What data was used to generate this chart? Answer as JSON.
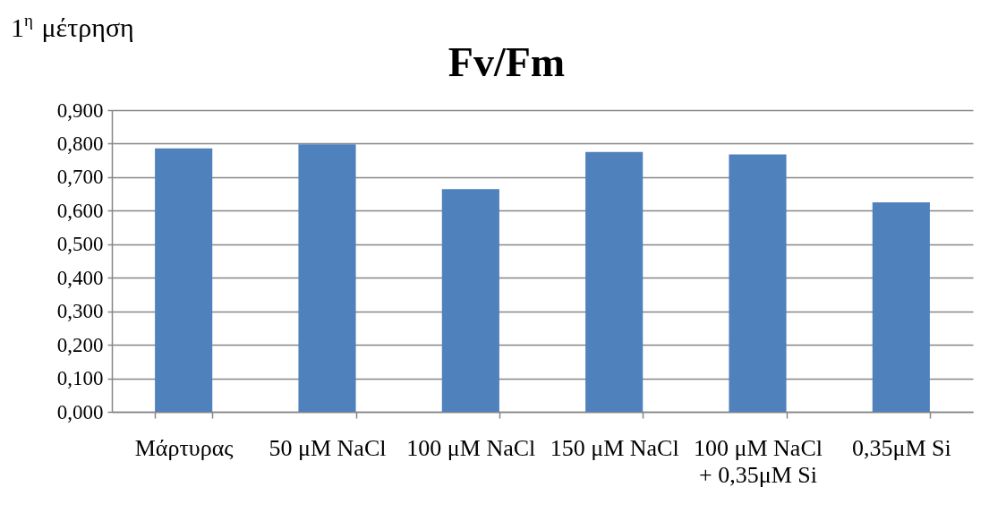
{
  "chart_data": {
    "type": "bar",
    "title": "Fv/Fm",
    "annotations": [
      "1$^{η}$ μέτρηση"
    ],
    "categories": [
      "Μάρτυρας",
      "50 μM NaCl",
      "100 μM NaCl",
      "150 μM NaCl",
      "100 μM NaCl + 0,35μM Si",
      "0,35μM Si"
    ],
    "values": [
      0.786,
      0.798,
      0.664,
      0.775,
      0.768,
      0.625
    ],
    "color": "#4f81bd",
    "ylim": [
      0,
      0.9
    ],
    "yticks": [
      {
        "value": 0,
        "label": "0,000"
      },
      {
        "value": 0.1,
        "label": "0,100"
      },
      {
        "value": 0.2,
        "label": "0,200"
      },
      {
        "value": 0.3,
        "label": "0,300"
      },
      {
        "value": 0.4,
        "label": "0,400"
      },
      {
        "value": 0.5,
        "label": "0,500"
      },
      {
        "value": 0.6,
        "label": "0,600"
      },
      {
        "value": 0.7,
        "label": "0,700"
      },
      {
        "value": 0.8,
        "label": "0,800"
      },
      {
        "value": 0.9,
        "label": "0,900"
      }
    ],
    "grid": "y"
  }
}
